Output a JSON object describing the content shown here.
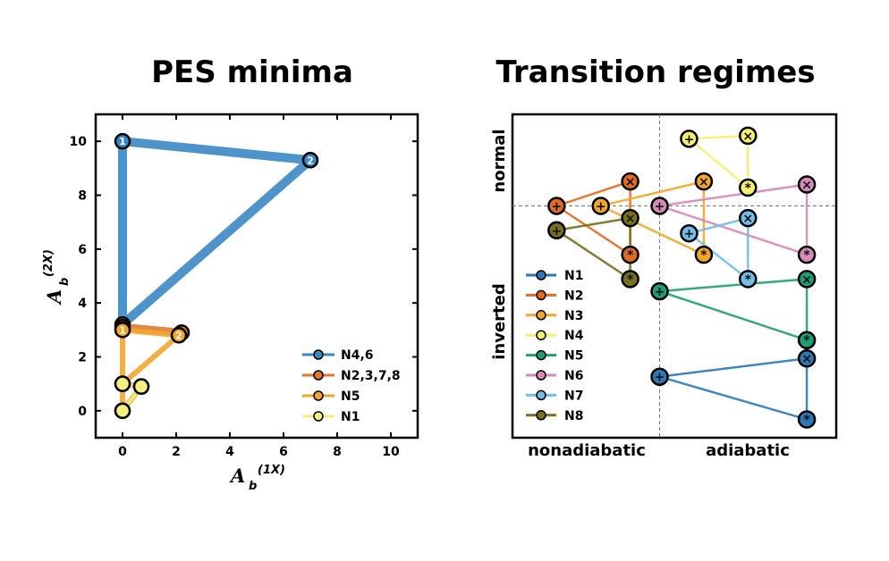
{
  "chart_data": [
    {
      "type": "line",
      "title": "PES minima",
      "xlabel": "A",
      "xlabel_sub": "b",
      "xlabel_sup": "(1X)",
      "ylabel": "A",
      "ylabel_sub": "b",
      "ylabel_sup": "(2X)",
      "xlim": [
        -1,
        11
      ],
      "ylim": [
        -1,
        11
      ],
      "xticks": [
        0,
        2,
        4,
        6,
        8,
        10
      ],
      "yticks": [
        0,
        2,
        4,
        6,
        8,
        10
      ],
      "legend_position": "lower-right",
      "series": [
        {
          "name": "N4,6",
          "color": "#3b88c4",
          "points": [
            [
              0,
              10,
              "1"
            ],
            [
              7,
              9.3,
              "2"
            ],
            [
              0,
              3.2,
              ""
            ],
            [
              0,
              10,
              ""
            ]
          ]
        },
        {
          "name": "N2,3,7,8",
          "color": "#e07a30",
          "points": [
            [
              0,
              3.1,
              ""
            ],
            [
              2.2,
              2.9,
              ""
            ]
          ]
        },
        {
          "name": "N5",
          "color": "#f0a630",
          "points": [
            [
              0,
              3.0,
              "1"
            ],
            [
              2.1,
              2.8,
              "2"
            ],
            [
              0,
              1.0,
              ""
            ],
            [
              0.7,
              0.9,
              ""
            ],
            [
              0,
              0,
              ""
            ],
            [
              0,
              3.0,
              ""
            ]
          ]
        },
        {
          "name": "N1",
          "color": "#f3f080",
          "points": [
            [
              0,
              1.0,
              ""
            ],
            [
              0.7,
              0.9,
              ""
            ],
            [
              0,
              0,
              ""
            ]
          ]
        }
      ]
    },
    {
      "type": "scatter",
      "title": "Transition regimes",
      "xlabel_left": "nonadiabatic",
      "xlabel_right": "adiabatic",
      "ylabel_top": "normal",
      "ylabel_bottom": "inverted",
      "legend_position": "lower-left",
      "series": [
        {
          "name": "N1",
          "color": "#2f78b6",
          "points": [
            [
              "+",
              0.0,
              -2.8
            ],
            [
              "×",
              1.0,
              -2.5
            ],
            [
              "*",
              1.0,
              -3.5
            ]
          ]
        },
        {
          "name": "N2",
          "color": "#e06b22",
          "points": [
            [
              "+",
              -0.7,
              0.0
            ],
            [
              "×",
              -0.2,
              0.4
            ],
            [
              "*",
              -0.2,
              -0.8
            ]
          ]
        },
        {
          "name": "N3",
          "color": "#f2a72a",
          "points": [
            [
              "+",
              -0.4,
              0.0
            ],
            [
              "×",
              0.3,
              0.4
            ],
            [
              "*",
              0.3,
              -0.8
            ]
          ]
        },
        {
          "name": "N4",
          "color": "#f4ef70",
          "points": [
            [
              "+",
              0.2,
              1.1
            ],
            [
              "×",
              0.6,
              1.15
            ],
            [
              "*",
              0.6,
              0.3
            ]
          ]
        },
        {
          "name": "N5",
          "color": "#1f9e75",
          "points": [
            [
              "+",
              0.0,
              -1.4
            ],
            [
              "×",
              1.0,
              -1.2
            ],
            [
              "*",
              1.0,
              -2.2
            ]
          ]
        },
        {
          "name": "N6",
          "color": "#d48bb8",
          "points": [
            [
              "+",
              0.0,
              0.0
            ],
            [
              "×",
              1.0,
              0.35
            ],
            [
              "*",
              1.0,
              -0.8
            ]
          ]
        },
        {
          "name": "N7",
          "color": "#74bde8",
          "points": [
            [
              "+",
              0.2,
              -0.45
            ],
            [
              "×",
              0.6,
              -0.2
            ],
            [
              "*",
              0.6,
              -1.2
            ]
          ]
        },
        {
          "name": "N8",
          "color": "#77701f",
          "points": [
            [
              "+",
              -0.7,
              -0.4
            ],
            [
              "×",
              -0.2,
              -0.2
            ],
            [
              "*",
              -0.2,
              -1.2
            ]
          ]
        }
      ]
    }
  ]
}
